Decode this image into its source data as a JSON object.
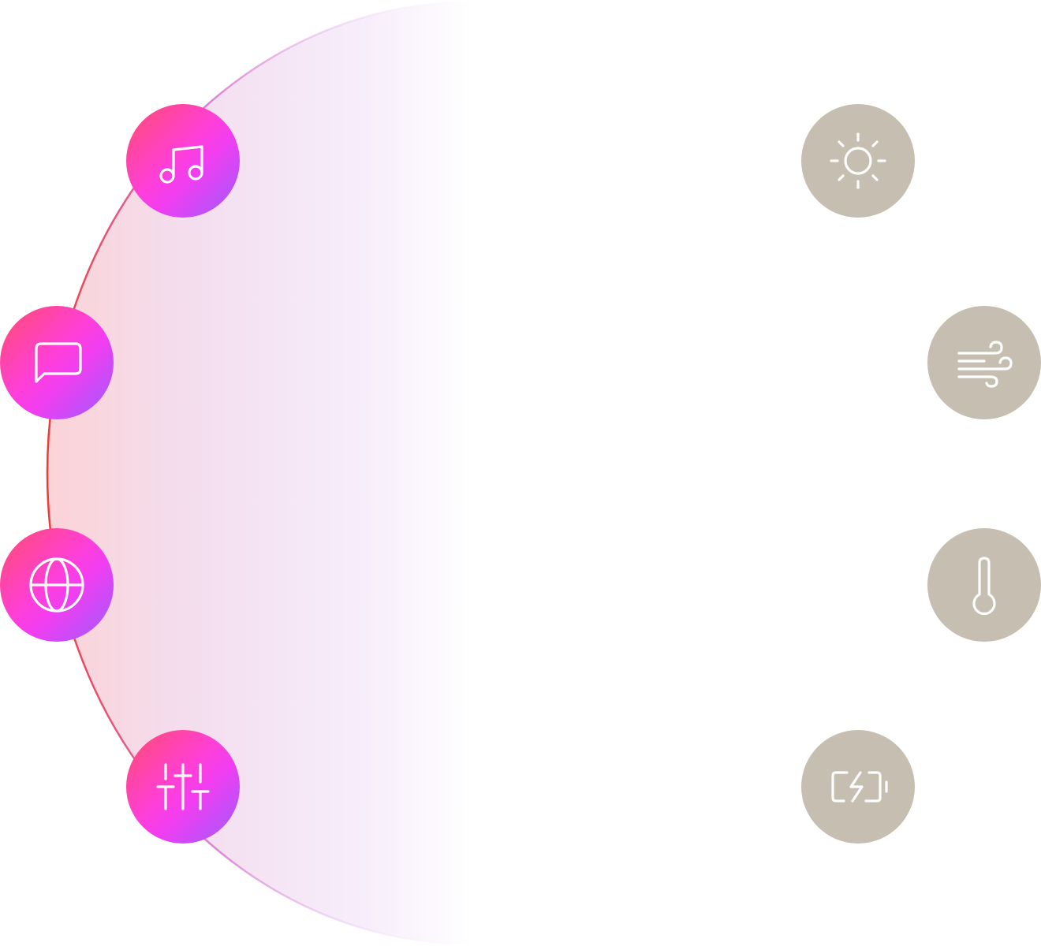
{
  "colors": {
    "active_gradient": [
      "#ff4d6d",
      "#ff3fd8",
      "#9b5cff"
    ],
    "muted": "#c6beb0",
    "ring_stroke": "#ee3a3a",
    "icon_stroke": "#ffffff"
  },
  "left_controls": [
    {
      "icon": "music-note-icon",
      "state": "active"
    },
    {
      "icon": "chat-bubble-icon",
      "state": "active"
    },
    {
      "icon": "globe-icon",
      "state": "active"
    },
    {
      "icon": "sliders-icon",
      "state": "active"
    }
  ],
  "right_controls": [
    {
      "icon": "sun-icon",
      "state": "inactive"
    },
    {
      "icon": "wind-icon",
      "state": "inactive"
    },
    {
      "icon": "thermometer-icon",
      "state": "inactive"
    },
    {
      "icon": "battery-charging-icon",
      "state": "inactive"
    }
  ]
}
